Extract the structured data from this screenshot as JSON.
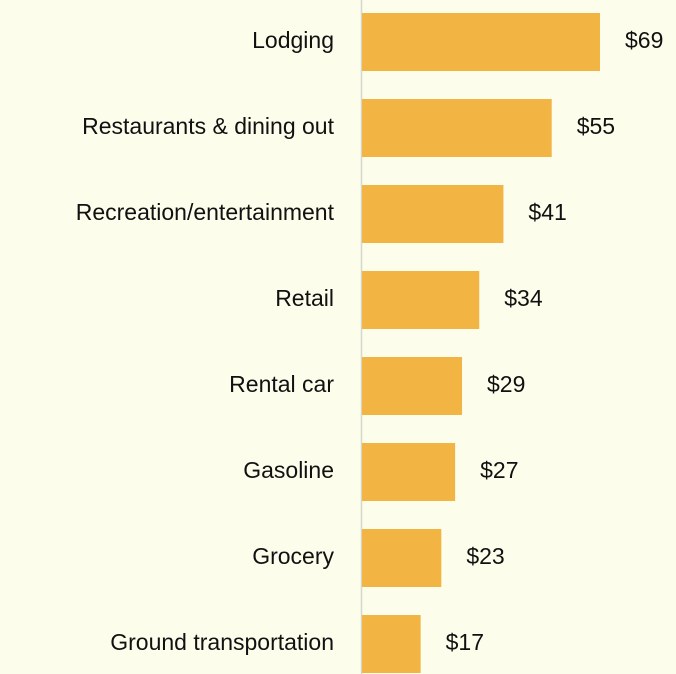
{
  "chart_data": {
    "type": "bar",
    "orientation": "horizontal",
    "categories": [
      "Lodging",
      "Restaurants & dining out",
      "Recreation/entertainment",
      "Retail",
      "Rental car",
      "Gasoline",
      "Grocery",
      "Ground transportation"
    ],
    "values": [
      69,
      55,
      41,
      34,
      29,
      27,
      23,
      17
    ],
    "value_labels": [
      "$69",
      "$55",
      "$41",
      "$34",
      "$29",
      "$27",
      "$23",
      "$17"
    ],
    "color": "#f2b544"
  }
}
